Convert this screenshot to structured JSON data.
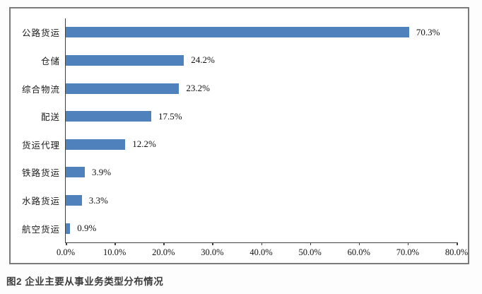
{
  "caption": "图2 企业主要从事业务类型分布情况",
  "chart_data": {
    "type": "bar",
    "orientation": "horizontal",
    "title": "",
    "xlabel": "",
    "ylabel": "",
    "xlim": [
      0,
      80
    ],
    "grid": false,
    "legend": false,
    "bar_color": "#4f81bd",
    "categories": [
      "公路货运",
      "仓储",
      "综合物流",
      "配送",
      "货运代理",
      "铁路货运",
      "水路货运",
      "航空货运"
    ],
    "values": [
      70.3,
      24.2,
      23.2,
      17.5,
      12.2,
      3.9,
      3.3,
      0.9
    ],
    "value_labels": [
      "70.3%",
      "24.2%",
      "23.2%",
      "17.5%",
      "12.2%",
      "3.9%",
      "3.3%",
      "0.9%"
    ],
    "x_ticks": [
      "0.0%",
      "10.0%",
      "20.0%",
      "30.0%",
      "40.0%",
      "50.0%",
      "60.0%",
      "70.0%",
      "80.0%"
    ],
    "x_tick_values": [
      0,
      10,
      20,
      30,
      40,
      50,
      60,
      70,
      80
    ]
  }
}
